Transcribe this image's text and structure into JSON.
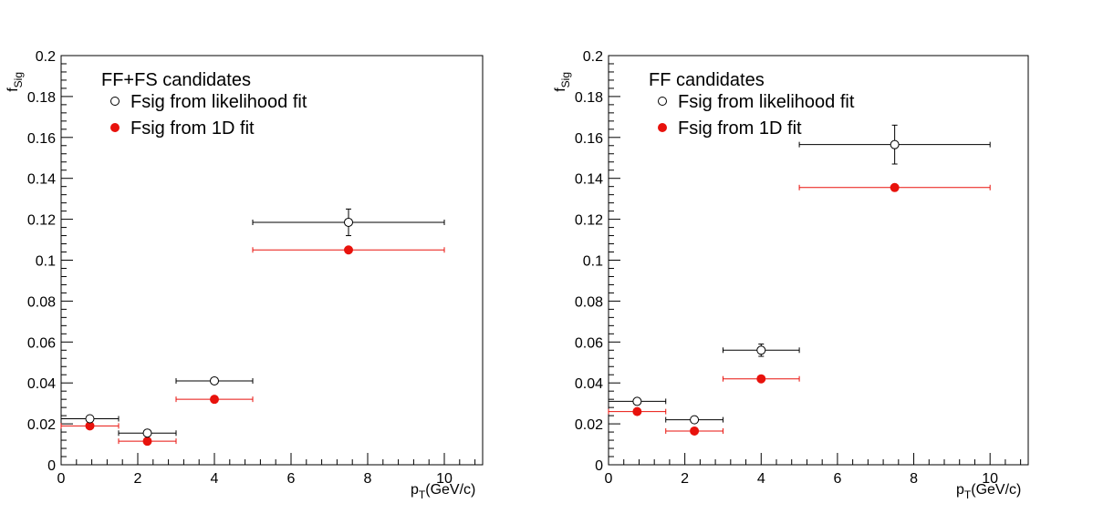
{
  "chart_data": [
    {
      "type": "scatter",
      "legend_title": "FF+FS candidates",
      "xlabel_main": "p",
      "xlabel_sub": "T",
      "xlabel_rest": "(GeV/c)",
      "ylabel_main": "f",
      "ylabel_sub": "Sig",
      "xlim": [
        0,
        11
      ],
      "ylim": [
        0,
        0.2
      ],
      "xticks": [
        0,
        2,
        4,
        6,
        8,
        10
      ],
      "yticks": [
        0,
        0.02,
        0.04,
        0.06,
        0.08,
        0.1,
        0.12,
        0.14,
        0.16,
        0.18,
        0.2
      ],
      "ytick_labels": [
        "0",
        "0.02",
        "0.04",
        "0.06",
        "0.08",
        "0.1",
        "0.12",
        "0.14",
        "0.16",
        "0.18",
        "0.2"
      ],
      "xtick_labels": [
        "0",
        "2",
        "4",
        "6",
        "8",
        "10"
      ],
      "grid": false,
      "legend_position": "top-left",
      "series": [
        {
          "name": "Fsig from likelihood fit",
          "marker": "open-circle",
          "color": "#000000",
          "points": [
            {
              "x": 0.75,
              "xlo": 0,
              "xhi": 1.5,
              "y": 0.0225,
              "yerr": 0.0008
            },
            {
              "x": 2.25,
              "xlo": 1.5,
              "xhi": 3,
              "y": 0.0155,
              "yerr": 0.0008
            },
            {
              "x": 4,
              "xlo": 3,
              "xhi": 5,
              "y": 0.041,
              "yerr": 0.0012
            },
            {
              "x": 7.5,
              "xlo": 5,
              "xhi": 10,
              "y": 0.1185,
              "yerr": 0.0065
            }
          ]
        },
        {
          "name": "Fsig from 1D fit",
          "marker": "filled-circle",
          "color": "#e8120c",
          "points": [
            {
              "x": 0.75,
              "xlo": 0,
              "xhi": 1.5,
              "y": 0.019,
              "yerr": 0
            },
            {
              "x": 2.25,
              "xlo": 1.5,
              "xhi": 3,
              "y": 0.0115,
              "yerr": 0
            },
            {
              "x": 4,
              "xlo": 3,
              "xhi": 5,
              "y": 0.032,
              "yerr": 0
            },
            {
              "x": 7.5,
              "xlo": 5,
              "xhi": 10,
              "y": 0.105,
              "yerr": 0
            }
          ]
        }
      ]
    },
    {
      "type": "scatter",
      "legend_title": "FF candidates",
      "xlabel_main": "p",
      "xlabel_sub": "T",
      "xlabel_rest": "(GeV/c)",
      "ylabel_main": "f",
      "ylabel_sub": "Sig",
      "xlim": [
        0,
        11
      ],
      "ylim": [
        0,
        0.2
      ],
      "xticks": [
        0,
        2,
        4,
        6,
        8,
        10
      ],
      "yticks": [
        0,
        0.02,
        0.04,
        0.06,
        0.08,
        0.1,
        0.12,
        0.14,
        0.16,
        0.18,
        0.2
      ],
      "ytick_labels": [
        "0",
        "0.02",
        "0.04",
        "0.06",
        "0.08",
        "0.1",
        "0.12",
        "0.14",
        "0.16",
        "0.18",
        "0.2"
      ],
      "xtick_labels": [
        "0",
        "2",
        "4",
        "6",
        "8",
        "10"
      ],
      "grid": false,
      "legend_position": "top-left",
      "series": [
        {
          "name": "Fsig from likelihood fit",
          "marker": "open-circle",
          "color": "#000000",
          "points": [
            {
              "x": 0.75,
              "xlo": 0,
              "xhi": 1.5,
              "y": 0.031,
              "yerr": 0.0008
            },
            {
              "x": 2.25,
              "xlo": 1.5,
              "xhi": 3,
              "y": 0.022,
              "yerr": 0.0008
            },
            {
              "x": 4,
              "xlo": 3,
              "xhi": 5,
              "y": 0.056,
              "yerr": 0.003
            },
            {
              "x": 7.5,
              "xlo": 5,
              "xhi": 10,
              "y": 0.1565,
              "yerr": 0.0095
            }
          ]
        },
        {
          "name": "Fsig from 1D fit",
          "marker": "filled-circle",
          "color": "#e8120c",
          "points": [
            {
              "x": 0.75,
              "xlo": 0,
              "xhi": 1.5,
              "y": 0.026,
              "yerr": 0
            },
            {
              "x": 2.25,
              "xlo": 1.5,
              "xhi": 3,
              "y": 0.0165,
              "yerr": 0
            },
            {
              "x": 4,
              "xlo": 3,
              "xhi": 5,
              "y": 0.042,
              "yerr": 0
            },
            {
              "x": 7.5,
              "xlo": 5,
              "xhi": 10,
              "y": 0.1355,
              "yerr": 0
            }
          ]
        }
      ]
    }
  ]
}
